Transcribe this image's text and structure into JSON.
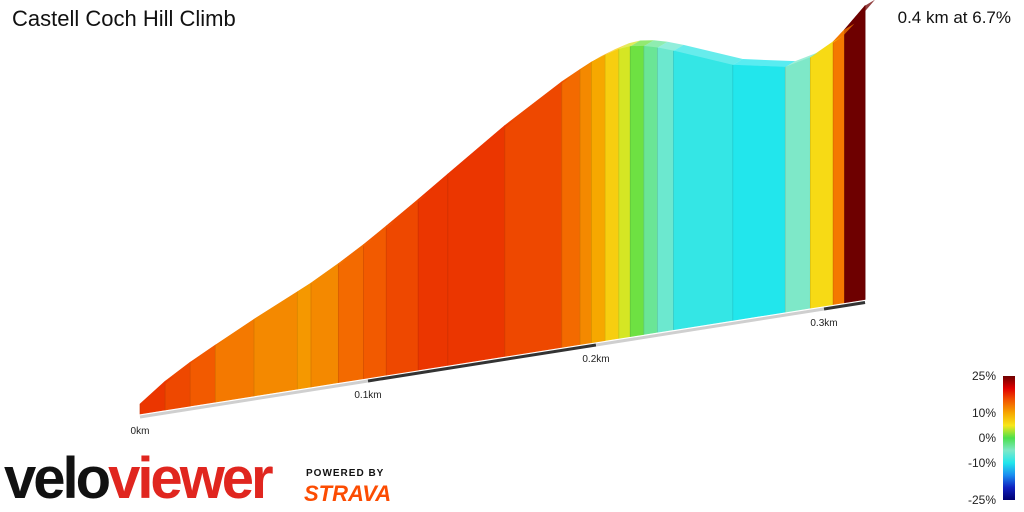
{
  "header": {
    "title": "Castell Coch Hill Climb",
    "summary": "0.4 km at 6.7%"
  },
  "branding": {
    "logo_part1": "velo",
    "logo_part2": "viewer",
    "powered_by": "POWERED BY",
    "strava": "STRAVA"
  },
  "chart_data": {
    "type": "area",
    "description_units": {
      "x": "km",
      "y": "gradient %"
    },
    "x_ticks": [
      "0km",
      "0.1km",
      "0.2km",
      "0.3km"
    ],
    "x_tick_values": [
      0,
      0.1,
      0.2,
      0.3
    ],
    "distance_km": 0.4,
    "avg_gradient_pct": 6.7,
    "segments": [
      {
        "x": 0.0,
        "grade": 17
      },
      {
        "x": 0.011,
        "grade": 16
      },
      {
        "x": 0.022,
        "grade": 15
      },
      {
        "x": 0.033,
        "grade": 13
      },
      {
        "x": 0.05,
        "grade": 12
      },
      {
        "x": 0.069,
        "grade": 11
      },
      {
        "x": 0.075,
        "grade": 12
      },
      {
        "x": 0.087,
        "grade": 14
      },
      {
        "x": 0.098,
        "grade": 15
      },
      {
        "x": 0.108,
        "grade": 16
      },
      {
        "x": 0.122,
        "grade": 17
      },
      {
        "x": 0.135,
        "grade": 17
      },
      {
        "x": 0.16,
        "grade": 16
      },
      {
        "x": 0.185,
        "grade": 14
      },
      {
        "x": 0.193,
        "grade": 12
      },
      {
        "x": 0.198,
        "grade": 10
      },
      {
        "x": 0.204,
        "grade": 7
      },
      {
        "x": 0.21,
        "grade": 4
      },
      {
        "x": 0.215,
        "grade": 1
      },
      {
        "x": 0.221,
        "grade": -3
      },
      {
        "x": 0.227,
        "grade": -6
      },
      {
        "x": 0.234,
        "grade": -9
      },
      {
        "x": 0.26,
        "grade": -10
      },
      {
        "x": 0.283,
        "grade": -5
      },
      {
        "x": 0.294,
        "grade": 6
      },
      {
        "x": 0.304,
        "grade": 13
      },
      {
        "x": 0.309,
        "grade": 25
      },
      {
        "x": 0.318,
        "grade": 25
      }
    ],
    "segment_end_x": 0.318,
    "elevation_relative_m": [
      0,
      2.0,
      3.6,
      5.0,
      7.1,
      9.3,
      10.0,
      11.6,
      13.2,
      14.8,
      17.1,
      19.3,
      23.5,
      27.2,
      28.2,
      28.8,
      29.3,
      29.7,
      29.8,
      29.6,
      29.2,
      28.6,
      26.1,
      25.0,
      25.6,
      26.9,
      28.0,
      30.2
    ],
    "color_scale": {
      "labels": [
        "25%",
        "10%",
        "0%",
        "-10%",
        "-25%"
      ],
      "values": [
        25,
        10,
        0,
        -10,
        -25
      ],
      "stops": [
        {
          "v": 25,
          "c": "#6e0000"
        },
        {
          "v": 20,
          "c": "#e00000"
        },
        {
          "v": 15,
          "c": "#f25a00"
        },
        {
          "v": 10,
          "c": "#f6a800"
        },
        {
          "v": 5,
          "c": "#f7e71a"
        },
        {
          "v": 0,
          "c": "#4ce04c"
        },
        {
          "v": -5,
          "c": "#7ee8c8"
        },
        {
          "v": -10,
          "c": "#22e6ec"
        },
        {
          "v": -15,
          "c": "#1a8cf0"
        },
        {
          "v": -20,
          "c": "#1020c0"
        },
        {
          "v": -25,
          "c": "#000070"
        }
      ]
    }
  }
}
